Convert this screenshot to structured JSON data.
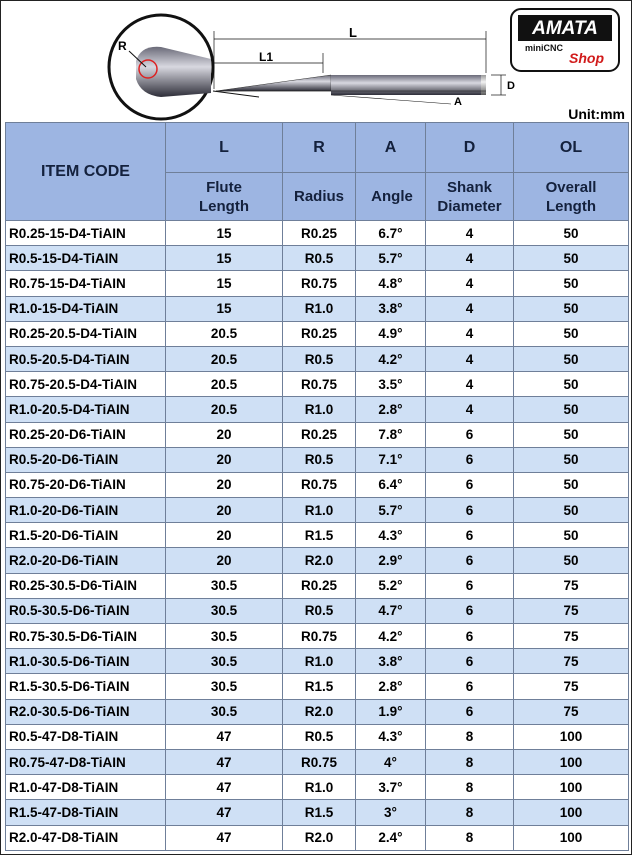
{
  "header": {
    "dimension_labels": {
      "R": "R",
      "L": "L",
      "L1": "L1",
      "D": "D",
      "A": "A"
    },
    "unit": "Unit:mm",
    "logo": {
      "brand": "AMATA",
      "sub": "miniCNC",
      "shop": "Shop"
    }
  },
  "table": {
    "item_code_header": "ITEM CODE",
    "header_codes": [
      "L",
      "R",
      "A",
      "D",
      "OL"
    ],
    "header_names": [
      "Flute Length",
      "Radius",
      "Angle",
      "Shank Diameter",
      "Overall Length"
    ],
    "rows": [
      [
        "R0.25-15-D4-TiAIN",
        "15",
        "R0.25",
        "6.7°",
        "4",
        "50"
      ],
      [
        "R0.5-15-D4-TiAIN",
        "15",
        "R0.5",
        "5.7°",
        "4",
        "50"
      ],
      [
        "R0.75-15-D4-TiAIN",
        "15",
        "R0.75",
        "4.8°",
        "4",
        "50"
      ],
      [
        "R1.0-15-D4-TiAIN",
        "15",
        "R1.0",
        "3.8°",
        "4",
        "50"
      ],
      [
        "R0.25-20.5-D4-TiAIN",
        "20.5",
        "R0.25",
        "4.9°",
        "4",
        "50"
      ],
      [
        "R0.5-20.5-D4-TiAIN",
        "20.5",
        "R0.5",
        "4.2°",
        "4",
        "50"
      ],
      [
        "R0.75-20.5-D4-TiAIN",
        "20.5",
        "R0.75",
        "3.5°",
        "4",
        "50"
      ],
      [
        "R1.0-20.5-D4-TiAIN",
        "20.5",
        "R1.0",
        "2.8°",
        "4",
        "50"
      ],
      [
        "R0.25-20-D6-TiAIN",
        "20",
        "R0.25",
        "7.8°",
        "6",
        "50"
      ],
      [
        "R0.5-20-D6-TiAIN",
        "20",
        "R0.5",
        "7.1°",
        "6",
        "50"
      ],
      [
        "R0.75-20-D6-TiAIN",
        "20",
        "R0.75",
        "6.4°",
        "6",
        "50"
      ],
      [
        "R1.0-20-D6-TiAIN",
        "20",
        "R1.0",
        "5.7°",
        "6",
        "50"
      ],
      [
        "R1.5-20-D6-TiAIN",
        "20",
        "R1.5",
        "4.3°",
        "6",
        "50"
      ],
      [
        "R2.0-20-D6-TiAIN",
        "20",
        "R2.0",
        "2.9°",
        "6",
        "50"
      ],
      [
        "R0.25-30.5-D6-TiAIN",
        "30.5",
        "R0.25",
        "5.2°",
        "6",
        "75"
      ],
      [
        "R0.5-30.5-D6-TiAIN",
        "30.5",
        "R0.5",
        "4.7°",
        "6",
        "75"
      ],
      [
        "R0.75-30.5-D6-TiAIN",
        "30.5",
        "R0.75",
        "4.2°",
        "6",
        "75"
      ],
      [
        "R1.0-30.5-D6-TiAIN",
        "30.5",
        "R1.0",
        "3.8°",
        "6",
        "75"
      ],
      [
        "R1.5-30.5-D6-TiAIN",
        "30.5",
        "R1.5",
        "2.8°",
        "6",
        "75"
      ],
      [
        "R2.0-30.5-D6-TiAIN",
        "30.5",
        "R2.0",
        "1.9°",
        "6",
        "75"
      ],
      [
        "R0.5-47-D8-TiAIN",
        "47",
        "R0.5",
        "4.3°",
        "8",
        "100"
      ],
      [
        "R0.75-47-D8-TiAIN",
        "47",
        "R0.75",
        "4°",
        "8",
        "100"
      ],
      [
        "R1.0-47-D8-TiAIN",
        "47",
        "R1.0",
        "3.7°",
        "8",
        "100"
      ],
      [
        "R1.5-47-D8-TiAIN",
        "47",
        "R1.5",
        "3°",
        "8",
        "100"
      ],
      [
        "R2.0-47-D8-TiAIN",
        "47",
        "R2.0",
        "2.4°",
        "8",
        "100"
      ]
    ]
  }
}
